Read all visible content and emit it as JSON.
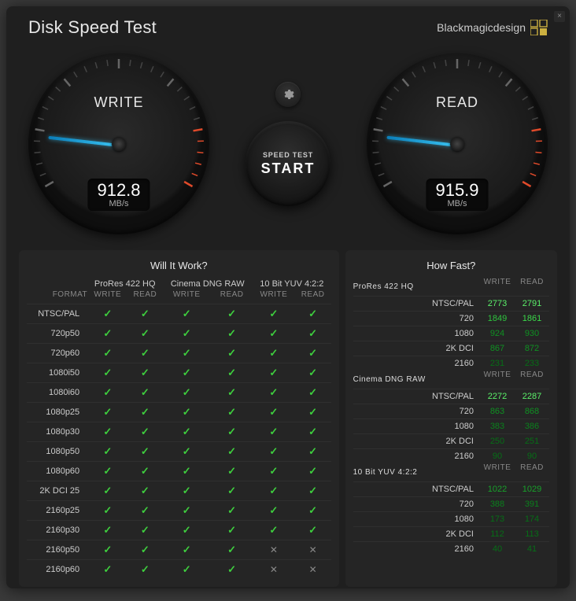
{
  "window": {
    "title": "Disk Speed Test",
    "brand": "Blackmagicdesign"
  },
  "colors": {
    "accent_needle": "#3bc5f4",
    "redline": "#e04a2a",
    "check": "#3ecf3e",
    "cross": "#888888",
    "panel_bg": "#252525",
    "window_bg": "#1f1f1f",
    "hf_colors": [
      "#5bf06a",
      "#5bf06a",
      "#3bd84a",
      "#2ec43e",
      "#20b032",
      "#18a02a",
      "#0f9022",
      "#0a801c",
      "#066e16",
      "#045c12"
    ]
  },
  "gauges": {
    "max_value": 6000,
    "tick_step": 1000,
    "start_angle_deg": 150,
    "sweep_deg": 240,
    "redline_from": 5000,
    "unit": "MB/s",
    "write": {
      "label": "WRITE",
      "value": 912.8
    },
    "read": {
      "label": "READ",
      "value": 915.9
    }
  },
  "center": {
    "start_top": "SPEED TEST",
    "start_main": "START"
  },
  "will_it_work": {
    "title": "Will It Work?",
    "format_header": "FORMAT",
    "sub_labels": {
      "write": "WRITE",
      "read": "READ"
    },
    "groups": [
      "ProRes 422 HQ",
      "Cinema DNG RAW",
      "10 Bit YUV 4:2:2"
    ],
    "formats": [
      "NTSC/PAL",
      "720p50",
      "720p60",
      "1080i50",
      "1080i60",
      "1080p25",
      "1080p30",
      "1080p50",
      "1080p60",
      "2K DCI 25",
      "2160p25",
      "2160p30",
      "2160p50",
      "2160p60"
    ],
    "results": [
      [
        [
          true,
          true
        ],
        [
          true,
          true
        ],
        [
          true,
          true
        ]
      ],
      [
        [
          true,
          true
        ],
        [
          true,
          true
        ],
        [
          true,
          true
        ]
      ],
      [
        [
          true,
          true
        ],
        [
          true,
          true
        ],
        [
          true,
          true
        ]
      ],
      [
        [
          true,
          true
        ],
        [
          true,
          true
        ],
        [
          true,
          true
        ]
      ],
      [
        [
          true,
          true
        ],
        [
          true,
          true
        ],
        [
          true,
          true
        ]
      ],
      [
        [
          true,
          true
        ],
        [
          true,
          true
        ],
        [
          true,
          true
        ]
      ],
      [
        [
          true,
          true
        ],
        [
          true,
          true
        ],
        [
          true,
          true
        ]
      ],
      [
        [
          true,
          true
        ],
        [
          true,
          true
        ],
        [
          true,
          true
        ]
      ],
      [
        [
          true,
          true
        ],
        [
          true,
          true
        ],
        [
          true,
          true
        ]
      ],
      [
        [
          true,
          true
        ],
        [
          true,
          true
        ],
        [
          true,
          true
        ]
      ],
      [
        [
          true,
          true
        ],
        [
          true,
          true
        ],
        [
          true,
          true
        ]
      ],
      [
        [
          true,
          true
        ],
        [
          true,
          true
        ],
        [
          true,
          true
        ]
      ],
      [
        [
          true,
          true
        ],
        [
          true,
          true
        ],
        [
          false,
          false
        ]
      ],
      [
        [
          true,
          true
        ],
        [
          true,
          true
        ],
        [
          false,
          false
        ]
      ]
    ]
  },
  "how_fast": {
    "title": "How Fast?",
    "sub_labels": {
      "write": "WRITE",
      "read": "READ"
    },
    "sections": [
      {
        "title": "ProRes 422 HQ",
        "rows": [
          {
            "label": "NTSC/PAL",
            "write": 2773,
            "read": 2791
          },
          {
            "label": "720",
            "write": 1849,
            "read": 1861
          },
          {
            "label": "1080",
            "write": 924,
            "read": 930
          },
          {
            "label": "2K DCI",
            "write": 867,
            "read": 872
          },
          {
            "label": "2160",
            "write": 231,
            "read": 233
          }
        ]
      },
      {
        "title": "Cinema DNG RAW",
        "rows": [
          {
            "label": "NTSC/PAL",
            "write": 2272,
            "read": 2287
          },
          {
            "label": "720",
            "write": 863,
            "read": 868
          },
          {
            "label": "1080",
            "write": 383,
            "read": 386
          },
          {
            "label": "2K DCI",
            "write": 250,
            "read": 251
          },
          {
            "label": "2160",
            "write": 90,
            "read": 90
          }
        ]
      },
      {
        "title": "10 Bit YUV 4:2:2",
        "rows": [
          {
            "label": "NTSC/PAL",
            "write": 1022,
            "read": 1029
          },
          {
            "label": "720",
            "write": 388,
            "read": 391
          },
          {
            "label": "1080",
            "write": 173,
            "read": 174
          },
          {
            "label": "2K DCI",
            "write": 112,
            "read": 113
          },
          {
            "label": "2160",
            "write": 40,
            "read": 41
          }
        ]
      }
    ]
  }
}
